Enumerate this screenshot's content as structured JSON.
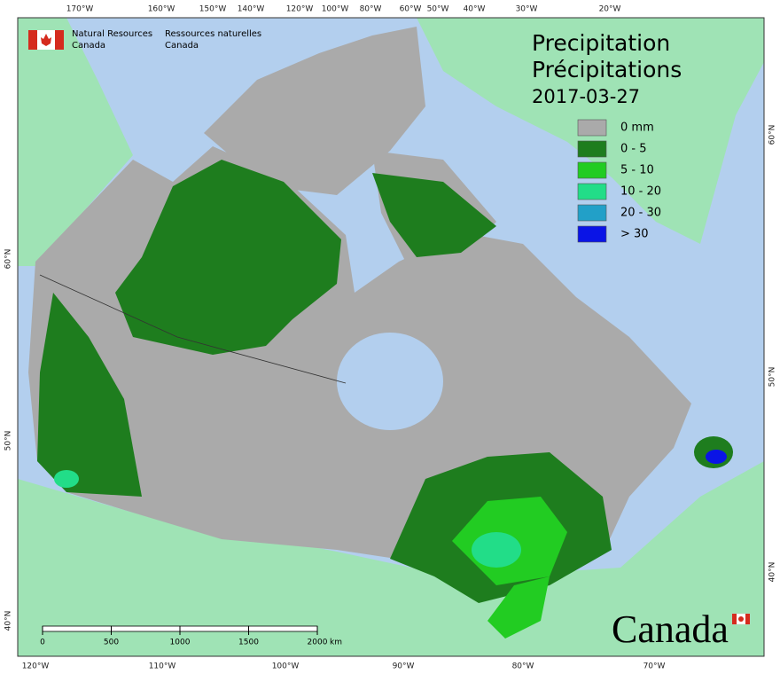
{
  "header": {
    "en": [
      "Natural Resources",
      "Canada"
    ],
    "fr": [
      "Ressources naturelles",
      "Canada"
    ]
  },
  "title": [
    "Precipitation",
    "Précipitations"
  ],
  "date": "2017-03-27",
  "legend": [
    {
      "label": "0 mm",
      "color": "#aaaaaa"
    },
    {
      "label": "0 - 5",
      "color": "#1e7d1e"
    },
    {
      "label": "5 - 10",
      "color": "#22cc22"
    },
    {
      "label": "10 - 20",
      "color": "#22dd88"
    },
    {
      "label": "20 - 30",
      "color": "#22a0c8"
    },
    {
      "label": "> 30",
      "color": "#0a14e6"
    }
  ],
  "top_labels": [
    "170°W",
    "160°W",
    "150°W",
    "140°W",
    "120°W",
    "100°W",
    "80°W",
    "60°W",
    "50°W",
    "40°W",
    "30°W",
    "20°W"
  ],
  "bottom_labels": [
    "120°W",
    "110°W",
    "100°W",
    "90°W",
    "80°W",
    "70°W"
  ],
  "left_labels": [
    "60°N",
    "50°N",
    "40°N"
  ],
  "right_labels": [
    "60°N",
    "50°N",
    "40°N"
  ],
  "scale": {
    "ticks": [
      0,
      500,
      1000,
      1500,
      2000
    ],
    "unit": "km"
  },
  "wordmark": "Canada"
}
